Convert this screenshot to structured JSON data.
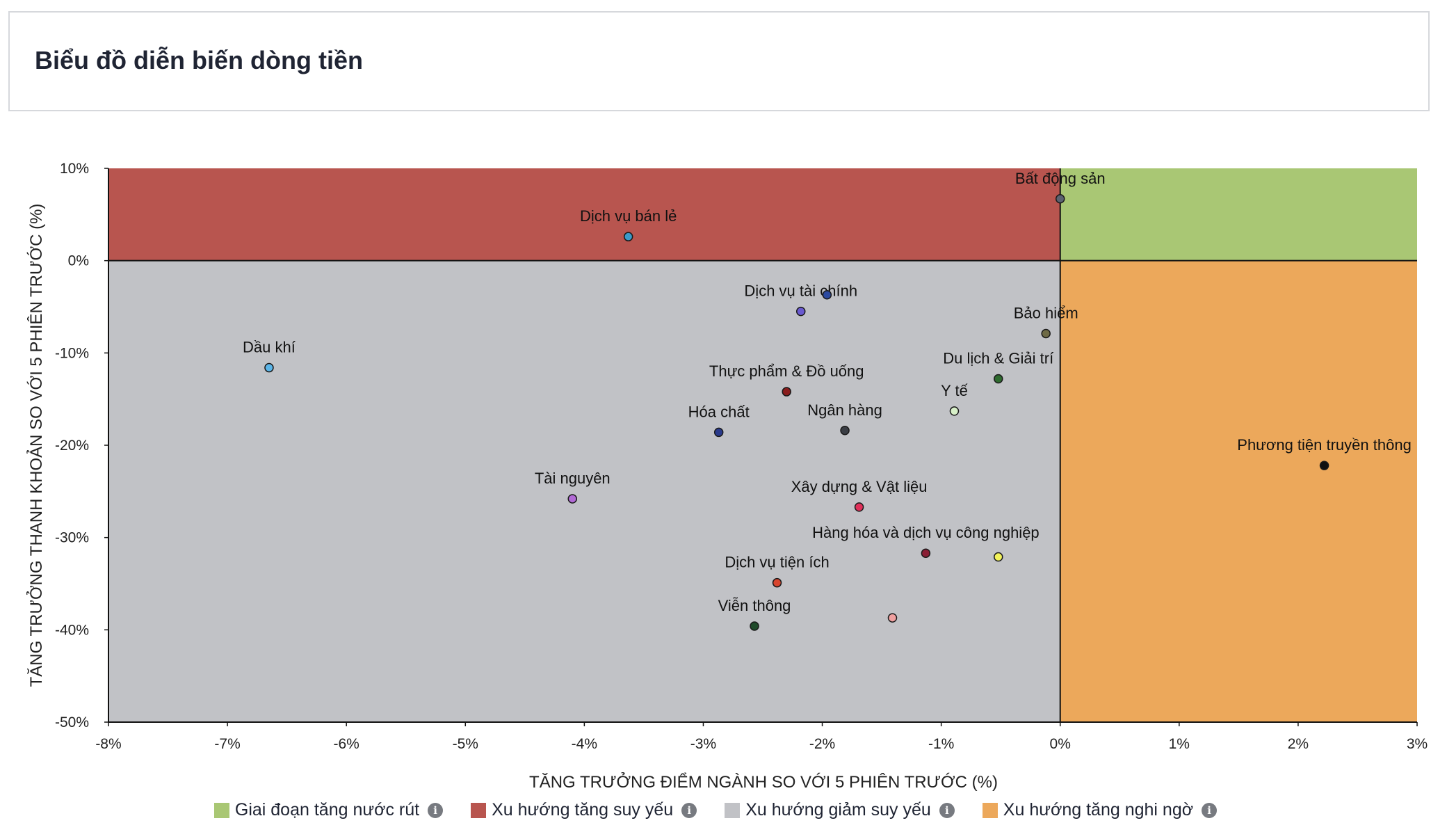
{
  "header": {
    "title": "Biểu đồ diễn biến dòng tiền"
  },
  "chart_data": {
    "type": "scatter",
    "title": "",
    "xlabel": "TĂNG TRƯỞNG ĐIỂM NGÀNH SO VỚI 5 PHIÊN TRƯỚC (%)",
    "ylabel": "TĂNG TRƯỞNG THANH KHOẢN SO VỚI 5 PHIÊN TRƯỚC (%)",
    "xlim": [
      -8,
      3
    ],
    "ylim": [
      -50,
      10
    ],
    "xticks": [
      -8,
      -7,
      -6,
      -5,
      -4,
      -3,
      -2,
      -1,
      0,
      1,
      2,
      3
    ],
    "yticks": [
      10,
      0,
      -10,
      -20,
      -30,
      -40,
      -50
    ],
    "x_tick_suffix": "%",
    "y_tick_suffix": "%",
    "grid": false,
    "quadrants": [
      {
        "name": "Giai đoạn tăng nước rút",
        "color": "#a9c774",
        "x": [
          0,
          3
        ],
        "y": [
          0,
          10
        ]
      },
      {
        "name": "Xu hướng tăng suy yếu",
        "color": "#b8554f",
        "x": [
          -8,
          0
        ],
        "y": [
          0,
          10
        ]
      },
      {
        "name": "Xu hướng giảm suy yếu",
        "color": "#c1c2c6",
        "x": [
          -8,
          0
        ],
        "y": [
          -50,
          0
        ]
      },
      {
        "name": "Xu hướng tăng nghi ngờ",
        "color": "#eca85b",
        "x": [
          0,
          3
        ],
        "y": [
          -50,
          0
        ]
      }
    ],
    "points": [
      {
        "label": "Bất động sản",
        "x": 0.0,
        "y": 6.7,
        "color": "#5b6270"
      },
      {
        "label": "Dịch vụ bán lẻ",
        "x": -3.63,
        "y": 2.6,
        "color": "#3b9ac9"
      },
      {
        "label": "Dịch vụ tài chính",
        "x": -2.18,
        "y": -5.5,
        "color": "#6a5ad0"
      },
      {
        "label": "",
        "x": -1.96,
        "y": -3.7,
        "color": "#2c4aa0"
      },
      {
        "label": "Dầu khí",
        "x": -6.65,
        "y": -11.6,
        "color": "#5bb5e8"
      },
      {
        "label": "Bảo hiểm",
        "x": -0.12,
        "y": -7.9,
        "color": "#6e6a45"
      },
      {
        "label": "Thực phẩm & Đồ uống",
        "x": -2.3,
        "y": -14.2,
        "color": "#8a1d1d"
      },
      {
        "label": "Du lịch & Giải trí",
        "x": -0.52,
        "y": -12.8,
        "color": "#2f6b2f"
      },
      {
        "label": "Y tế",
        "x": -0.89,
        "y": -16.3,
        "color": "#d8f0c8"
      },
      {
        "label": "Hóa chất",
        "x": -2.87,
        "y": -18.6,
        "color": "#2a3a8c"
      },
      {
        "label": "Ngân hàng",
        "x": -1.81,
        "y": -18.4,
        "color": "#3a3d44"
      },
      {
        "label": "Phương tiện truyền thông",
        "x": 2.22,
        "y": -22.2,
        "color": "#111111"
      },
      {
        "label": "Tài nguyên",
        "x": -4.1,
        "y": -25.8,
        "color": "#b26ad6"
      },
      {
        "label": "Xây dựng & Vật liệu",
        "x": -1.69,
        "y": -26.7,
        "color": "#e0305a"
      },
      {
        "label": "Hàng hóa và dịch vụ công nghiệp",
        "x": -1.13,
        "y": -31.7,
        "color": "#8a1f35"
      },
      {
        "label": "",
        "x": -0.52,
        "y": -32.1,
        "color": "#f2f25a"
      },
      {
        "label": "Dịch vụ tiện ích",
        "x": -2.38,
        "y": -34.9,
        "color": "#d8452e"
      },
      {
        "label": "Viễn thông",
        "x": -2.57,
        "y": -39.6,
        "color": "#1f4a2a"
      },
      {
        "label": "",
        "x": -1.41,
        "y": -38.7,
        "color": "#f0a0a0"
      }
    ]
  },
  "legend": {
    "items": [
      {
        "label": "Giai đoạn tăng nước rút",
        "color": "#a9c774"
      },
      {
        "label": "Xu hướng tăng suy yếu",
        "color": "#b8554f"
      },
      {
        "label": "Xu hướng giảm suy yếu",
        "color": "#c1c2c6"
      },
      {
        "label": "Xu hướng tăng nghi ngờ",
        "color": "#eca85b"
      }
    ],
    "info_icon": "info-icon"
  }
}
